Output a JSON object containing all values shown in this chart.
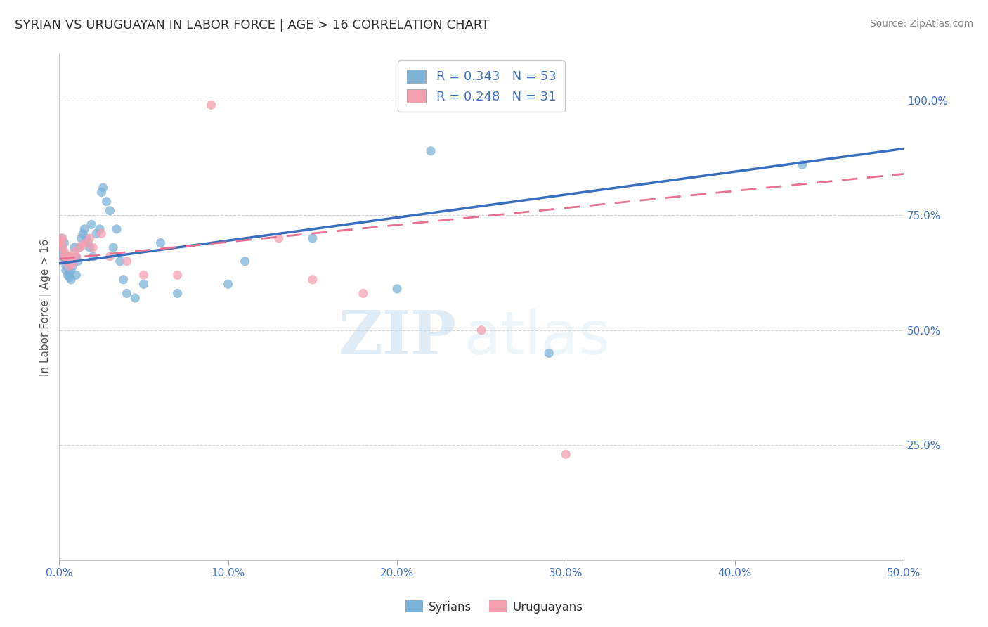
{
  "title": "SYRIAN VS URUGUAYAN IN LABOR FORCE | AGE > 16 CORRELATION CHART",
  "source_text": "Source: ZipAtlas.com",
  "ylabel": "In Labor Force | Age > 16",
  "xlim": [
    0.0,
    0.5
  ],
  "ylim": [
    0.0,
    1.1
  ],
  "xtick_labels": [
    "0.0%",
    "10.0%",
    "20.0%",
    "30.0%",
    "40.0%",
    "50.0%"
  ],
  "xtick_vals": [
    0.0,
    0.1,
    0.2,
    0.3,
    0.4,
    0.5
  ],
  "ytick_labels_right": [
    "25.0%",
    "50.0%",
    "75.0%",
    "100.0%"
  ],
  "ytick_vals_right": [
    0.25,
    0.5,
    0.75,
    1.0
  ],
  "r_syrian": 0.343,
  "n_syrian": 53,
  "r_uruguayan": 0.248,
  "n_uruguayan": 31,
  "syrian_color": "#7eb3d8",
  "uruguayan_color": "#f4a0b0",
  "syrian_line_color": "#3a6fbf",
  "uruguayan_line_color": "#e87090",
  "background_color": "#ffffff",
  "grid_color": "#cccccc",
  "title_color": "#333333",
  "axis_label_color": "#555555",
  "tick_color": "#4472c4",
  "watermark_zip": "ZIP",
  "watermark_atlas": "atlas",
  "legend_r_color": "#4472c4",
  "syrians_x": [
    0.001,
    0.001,
    0.002,
    0.002,
    0.002,
    0.003,
    0.003,
    0.003,
    0.004,
    0.004,
    0.005,
    0.005,
    0.005,
    0.006,
    0.006,
    0.007,
    0.007,
    0.008,
    0.009,
    0.01,
    0.01,
    0.011,
    0.012,
    0.013,
    0.014,
    0.015,
    0.016,
    0.017,
    0.018,
    0.019,
    0.02,
    0.022,
    0.024,
    0.025,
    0.026,
    0.028,
    0.03,
    0.032,
    0.034,
    0.036,
    0.038,
    0.04,
    0.045,
    0.05,
    0.06,
    0.07,
    0.1,
    0.11,
    0.15,
    0.2,
    0.29,
    0.44,
    0.22
  ],
  "syrians_y": [
    0.695,
    0.7,
    0.68,
    0.67,
    0.665,
    0.66,
    0.655,
    0.69,
    0.64,
    0.63,
    0.62,
    0.65,
    0.66,
    0.615,
    0.625,
    0.61,
    0.63,
    0.64,
    0.68,
    0.62,
    0.66,
    0.65,
    0.68,
    0.7,
    0.71,
    0.72,
    0.7,
    0.69,
    0.68,
    0.73,
    0.66,
    0.71,
    0.72,
    0.8,
    0.81,
    0.78,
    0.76,
    0.68,
    0.72,
    0.65,
    0.61,
    0.58,
    0.57,
    0.6,
    0.69,
    0.58,
    0.6,
    0.65,
    0.7,
    0.59,
    0.45,
    0.86,
    0.89
  ],
  "uruguayans_x": [
    0.001,
    0.001,
    0.002,
    0.002,
    0.003,
    0.003,
    0.004,
    0.005,
    0.005,
    0.006,
    0.006,
    0.007,
    0.008,
    0.009,
    0.01,
    0.012,
    0.014,
    0.016,
    0.018,
    0.02,
    0.025,
    0.03,
    0.04,
    0.05,
    0.07,
    0.09,
    0.13,
    0.15,
    0.18,
    0.25,
    0.3
  ],
  "uruguayans_y": [
    0.69,
    0.695,
    0.68,
    0.7,
    0.67,
    0.665,
    0.66,
    0.655,
    0.65,
    0.64,
    0.66,
    0.65,
    0.645,
    0.67,
    0.66,
    0.68,
    0.685,
    0.69,
    0.7,
    0.68,
    0.71,
    0.66,
    0.65,
    0.62,
    0.62,
    0.99,
    0.7,
    0.61,
    0.58,
    0.5,
    0.23
  ],
  "trend_sx0": 0.645,
  "trend_sx1": 0.895,
  "trend_ux0": 0.655,
  "trend_ux1": 0.84
}
